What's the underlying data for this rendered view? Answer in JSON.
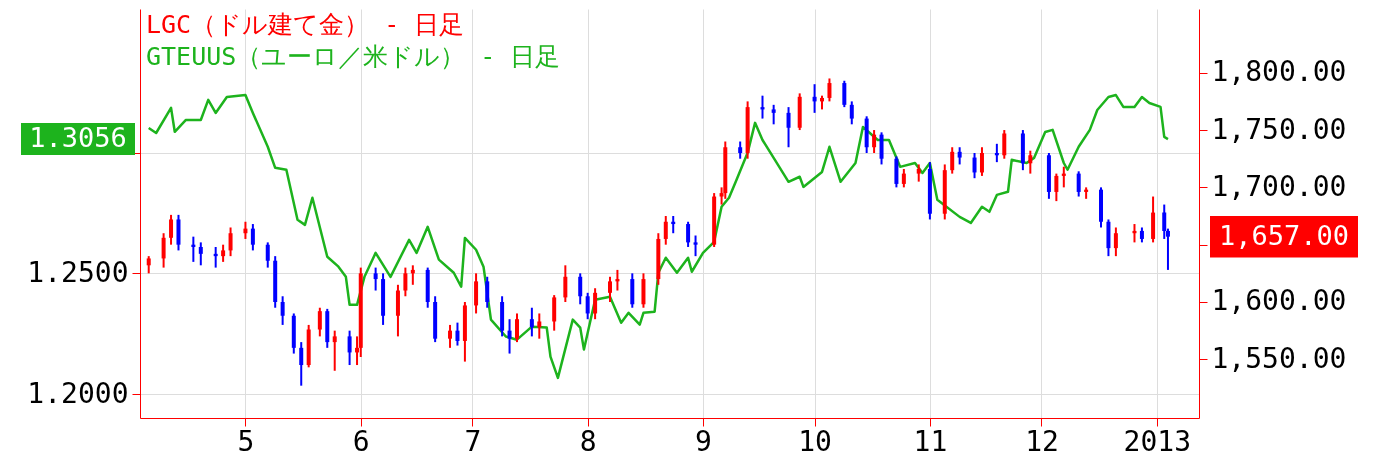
{
  "chart_data": {
    "type": "candlestick",
    "xlim": [
      "2012-04-04",
      "2013-01-11"
    ],
    "xticks": [
      {
        "value": "2012-05-01",
        "label": "5"
      },
      {
        "value": "2012-06-01",
        "label": "6"
      },
      {
        "value": "2012-07-01",
        "label": "7"
      },
      {
        "value": "2012-08-01",
        "label": "8"
      },
      {
        "value": "2012-09-01",
        "label": "9"
      },
      {
        "value": "2012-10-01",
        "label": "10"
      },
      {
        "value": "2012-11-01",
        "label": "11"
      },
      {
        "value": "2012-12-01",
        "label": "12"
      },
      {
        "value": "2013-01-01",
        "label": "2013"
      }
    ],
    "ylim": [
      1.1902,
      1.3594
    ],
    "yticks": [
      {
        "value": 1.2,
        "label": "1.2000"
      },
      {
        "value": 1.25,
        "label": "1.2500"
      },
      {
        "value": 1.3,
        "label": null
      }
    ],
    "y2lim": [
      1498.8,
      1855.6
    ],
    "y2ticks": [
      {
        "value": 1550,
        "label": "1,550.00"
      },
      {
        "value": 1600,
        "label": "1,600.00"
      },
      {
        "value": 1650,
        "label": null
      },
      {
        "value": 1700,
        "label": "1,700.00"
      },
      {
        "value": 1750,
        "label": "1,750.00"
      },
      {
        "value": 1800,
        "label": "1,800.00"
      }
    ],
    "grid": true,
    "legend": "top left",
    "annotations": [
      "1,657.00",
      "1.3056"
    ],
    "series": [
      {
        "name": "LGC（ドル建て金） - 日足",
        "color": "#ff0000",
        "axis": "y2",
        "x": [
          "2012-04-05",
          "2012-04-09",
          "2012-04-11",
          "2012-04-13",
          "2012-04-17",
          "2012-04-19",
          "2012-04-23",
          "2012-04-25",
          "2012-04-27",
          "2012-05-01",
          "2012-05-03",
          "2012-05-07",
          "2012-05-09",
          "2012-05-11",
          "2012-05-14",
          "2012-05-16",
          "2012-05-18",
          "2012-05-21",
          "2012-05-23",
          "2012-05-25",
          "2012-05-29",
          "2012-05-31",
          "2012-06-01",
          "2012-06-05",
          "2012-06-07",
          "2012-06-11",
          "2012-06-13",
          "2012-06-15",
          "2012-06-19",
          "2012-06-21",
          "2012-06-25",
          "2012-06-27",
          "2012-06-29",
          "2012-07-02",
          "2012-07-05",
          "2012-07-09",
          "2012-07-11",
          "2012-07-13",
          "2012-07-17",
          "2012-07-19",
          "2012-07-23",
          "2012-07-26",
          "2012-07-30",
          "2012-08-01",
          "2012-08-03",
          "2012-08-07",
          "2012-08-09",
          "2012-08-13",
          "2012-08-16",
          "2012-08-20",
          "2012-08-22",
          "2012-08-24",
          "2012-08-28",
          "2012-08-30",
          "2012-09-04",
          "2012-09-06",
          "2012-09-07",
          "2012-09-11",
          "2012-09-13",
          "2012-09-17",
          "2012-09-20",
          "2012-09-24",
          "2012-09-27",
          "2012-10-01",
          "2012-10-03",
          "2012-10-05",
          "2012-10-09",
          "2012-10-11",
          "2012-10-15",
          "2012-10-17",
          "2012-10-19",
          "2012-10-23",
          "2012-10-25",
          "2012-10-29",
          "2012-11-01",
          "2012-11-05",
          "2012-11-07",
          "2012-11-09",
          "2012-11-13",
          "2012-11-15",
          "2012-11-19",
          "2012-11-21",
          "2012-11-26",
          "2012-11-28",
          "2012-12-03",
          "2012-12-05",
          "2012-12-07",
          "2012-12-11",
          "2012-12-13",
          "2012-12-17",
          "2012-12-19",
          "2012-12-21",
          "2012-12-26",
          "2012-12-28",
          "2012-12-31",
          "2013-01-03",
          "2013-01-04"
        ],
        "ohlc": [
          [
            1632,
            1640,
            1625,
            1638
          ],
          [
            1638,
            1660,
            1630,
            1656
          ],
          [
            1656,
            1676,
            1650,
            1672
          ],
          [
            1672,
            1676,
            1645,
            1650
          ],
          [
            1650,
            1657,
            1635,
            1648
          ],
          [
            1648,
            1652,
            1632,
            1642
          ],
          [
            1642,
            1648,
            1630,
            1640
          ],
          [
            1640,
            1650,
            1635,
            1645
          ],
          [
            1645,
            1665,
            1640,
            1660
          ],
          [
            1660,
            1670,
            1655,
            1664
          ],
          [
            1664,
            1668,
            1645,
            1650
          ],
          [
            1650,
            1652,
            1630,
            1636
          ],
          [
            1636,
            1640,
            1595,
            1600
          ],
          [
            1600,
            1605,
            1580,
            1588
          ],
          [
            1588,
            1590,
            1555,
            1560
          ],
          [
            1560,
            1565,
            1527,
            1545
          ],
          [
            1545,
            1580,
            1543,
            1576
          ],
          [
            1576,
            1595,
            1570,
            1592
          ],
          [
            1592,
            1594,
            1560,
            1565
          ],
          [
            1565,
            1575,
            1540,
            1570
          ],
          [
            1570,
            1575,
            1545,
            1556
          ],
          [
            1556,
            1570,
            1545,
            1560
          ],
          [
            1560,
            1630,
            1552,
            1625
          ],
          [
            1625,
            1630,
            1610,
            1620
          ],
          [
            1620,
            1625,
            1580,
            1588
          ],
          [
            1588,
            1615,
            1570,
            1610
          ],
          [
            1610,
            1630,
            1605,
            1625
          ],
          [
            1625,
            1632,
            1615,
            1628
          ],
          [
            1628,
            1630,
            1595,
            1600
          ],
          [
            1600,
            1605,
            1565,
            1568
          ],
          [
            1568,
            1580,
            1560,
            1575
          ],
          [
            1575,
            1582,
            1562,
            1566
          ],
          [
            1566,
            1600,
            1548,
            1597
          ],
          [
            1597,
            1625,
            1590,
            1618
          ],
          [
            1618,
            1622,
            1595,
            1600
          ],
          [
            1600,
            1605,
            1570,
            1575
          ],
          [
            1575,
            1585,
            1555,
            1568
          ],
          [
            1568,
            1590,
            1565,
            1585
          ],
          [
            1585,
            1595,
            1570,
            1578
          ],
          [
            1578,
            1590,
            1568,
            1583
          ],
          [
            1583,
            1606,
            1575,
            1604
          ],
          [
            1604,
            1632,
            1600,
            1622
          ],
          [
            1622,
            1625,
            1598,
            1605
          ],
          [
            1605,
            1608,
            1585,
            1590
          ],
          [
            1590,
            1612,
            1585,
            1608
          ],
          [
            1608,
            1622,
            1600,
            1618
          ],
          [
            1618,
            1628,
            1610,
            1620
          ],
          [
            1620,
            1625,
            1595,
            1598
          ],
          [
            1598,
            1625,
            1595,
            1620
          ],
          [
            1620,
            1660,
            1615,
            1655
          ],
          [
            1655,
            1675,
            1650,
            1670
          ],
          [
            1670,
            1675,
            1660,
            1668
          ],
          [
            1668,
            1670,
            1648,
            1652
          ],
          [
            1652,
            1658,
            1640,
            1650
          ],
          [
            1650,
            1695,
            1648,
            1692
          ],
          [
            1692,
            1700,
            1685,
            1695
          ],
          [
            1695,
            1740,
            1690,
            1735
          ],
          [
            1735,
            1740,
            1725,
            1730
          ],
          [
            1730,
            1775,
            1725,
            1770
          ],
          [
            1770,
            1780,
            1760,
            1768
          ],
          [
            1768,
            1772,
            1755,
            1765
          ],
          [
            1765,
            1770,
            1735,
            1752
          ],
          [
            1752,
            1782,
            1750,
            1779
          ],
          [
            1779,
            1790,
            1765,
            1775
          ],
          [
            1775,
            1780,
            1768,
            1778
          ],
          [
            1778,
            1795,
            1775,
            1791
          ],
          [
            1791,
            1793,
            1770,
            1772
          ],
          [
            1772,
            1775,
            1755,
            1760
          ],
          [
            1760,
            1762,
            1730,
            1735
          ],
          [
            1735,
            1750,
            1730,
            1746
          ],
          [
            1746,
            1748,
            1720,
            1725
          ],
          [
            1725,
            1727,
            1700,
            1703
          ],
          [
            1703,
            1716,
            1700,
            1712
          ],
          [
            1712,
            1720,
            1705,
            1716
          ],
          [
            1716,
            1722,
            1672,
            1677
          ],
          [
            1677,
            1720,
            1672,
            1715
          ],
          [
            1715,
            1735,
            1712,
            1731
          ],
          [
            1731,
            1735,
            1720,
            1726
          ],
          [
            1726,
            1730,
            1708,
            1713
          ],
          [
            1713,
            1735,
            1710,
            1730
          ],
          [
            1730,
            1738,
            1722,
            1728
          ],
          [
            1728,
            1750,
            1725,
            1747
          ],
          [
            1747,
            1750,
            1715,
            1721
          ],
          [
            1721,
            1732,
            1712,
            1728
          ],
          [
            1728,
            1730,
            1690,
            1696
          ],
          [
            1696,
            1712,
            1688,
            1710
          ],
          [
            1710,
            1718,
            1700,
            1712
          ],
          [
            1712,
            1714,
            1692,
            1696
          ],
          [
            1696,
            1700,
            1690,
            1698
          ],
          [
            1698,
            1700,
            1665,
            1670
          ],
          [
            1670,
            1672,
            1640,
            1647
          ],
          [
            1647,
            1665,
            1640,
            1660
          ],
          [
            1660,
            1668,
            1652,
            1662
          ],
          [
            1662,
            1665,
            1652,
            1655
          ],
          [
            1655,
            1692,
            1652,
            1678
          ],
          [
            1678,
            1685,
            1655,
            1662
          ],
          [
            1662,
            1664,
            1628,
            1657
          ]
        ],
        "colors": [
          "#ff0000",
          "#ff0000",
          "#ff0000",
          "#0000ff",
          "#0000ff",
          "#0000ff",
          "#0000ff",
          "#ff0000",
          "#ff0000",
          "#ff0000",
          "#0000ff",
          "#0000ff",
          "#0000ff",
          "#0000ff",
          "#0000ff",
          "#0000ff",
          "#ff0000",
          "#ff0000",
          "#0000ff",
          "#ff0000",
          "#0000ff",
          "#ff0000",
          "#ff0000",
          "#0000ff",
          "#0000ff",
          "#ff0000",
          "#ff0000",
          "#ff0000",
          "#0000ff",
          "#0000ff",
          "#ff0000",
          "#0000ff",
          "#ff0000",
          "#ff0000",
          "#0000ff",
          "#0000ff",
          "#0000ff",
          "#ff0000",
          "#0000ff",
          "#ff0000",
          "#ff0000",
          "#ff0000",
          "#0000ff",
          "#0000ff",
          "#ff0000",
          "#ff0000",
          "#ff0000",
          "#0000ff",
          "#ff0000",
          "#ff0000",
          "#ff0000",
          "#0000ff",
          "#0000ff",
          "#0000ff",
          "#ff0000",
          "#ff0000",
          "#ff0000",
          "#0000ff",
          "#ff0000",
          "#0000ff",
          "#0000ff",
          "#0000ff",
          "#ff0000",
          "#0000ff",
          "#ff0000",
          "#ff0000",
          "#0000ff",
          "#0000ff",
          "#0000ff",
          "#ff0000",
          "#0000ff",
          "#0000ff",
          "#ff0000",
          "#ff0000",
          "#0000ff",
          "#ff0000",
          "#ff0000",
          "#0000ff",
          "#0000ff",
          "#ff0000",
          "#0000ff",
          "#ff0000",
          "#0000ff",
          "#ff0000",
          "#0000ff",
          "#ff0000",
          "#ff0000",
          "#0000ff",
          "#ff0000",
          "#0000ff",
          "#0000ff",
          "#ff0000",
          "#ff0000",
          "#0000ff",
          "#ff0000",
          "#0000ff",
          "#0000ff"
        ]
      },
      {
        "type": "line",
        "name": "GTEUUS（ユーロ／米ドル） - 日足",
        "color": "#1db31d",
        "axis": "y",
        "x": [
          "2012-04-05",
          "2012-04-07",
          "2012-04-11",
          "2012-04-12",
          "2012-04-15",
          "2012-04-19",
          "2012-04-21",
          "2012-04-23",
          "2012-04-26",
          "2012-05-01",
          "2012-05-03",
          "2012-05-07",
          "2012-05-09",
          "2012-05-12",
          "2012-05-15",
          "2012-05-17",
          "2012-05-19",
          "2012-05-23",
          "2012-05-26",
          "2012-05-28",
          "2012-05-29",
          "2012-05-31",
          "2012-06-02",
          "2012-06-05",
          "2012-06-09",
          "2012-06-14",
          "2012-06-16",
          "2012-06-19",
          "2012-06-22",
          "2012-06-26",
          "2012-06-28",
          "2012-06-29",
          "2012-07-02",
          "2012-07-04",
          "2012-07-06",
          "2012-07-10",
          "2012-07-13",
          "2012-07-17",
          "2012-07-21",
          "2012-07-22",
          "2012-07-24",
          "2012-07-28",
          "2012-07-30",
          "2012-07-31",
          "2012-08-03",
          "2012-08-07",
          "2012-08-10",
          "2012-08-12",
          "2012-08-15",
          "2012-08-16",
          "2012-08-19",
          "2012-08-20",
          "2012-08-22",
          "2012-08-25",
          "2012-08-28",
          "2012-08-29",
          "2012-09-01",
          "2012-09-04",
          "2012-09-06",
          "2012-09-08",
          "2012-09-10",
          "2012-09-13",
          "2012-09-15",
          "2012-09-17",
          "2012-09-20",
          "2012-09-24",
          "2012-09-27",
          "2012-09-28",
          "2012-10-03",
          "2012-10-05",
          "2012-10-08",
          "2012-10-12",
          "2012-10-14",
          "2012-10-18",
          "2012-10-21",
          "2012-10-24",
          "2012-10-28",
          "2012-10-30",
          "2012-11-01",
          "2012-11-03",
          "2012-11-09",
          "2012-11-12",
          "2012-11-15",
          "2012-11-17",
          "2012-11-19",
          "2012-11-22",
          "2012-11-23",
          "2012-11-27",
          "2012-11-29",
          "2012-12-02",
          "2012-12-04",
          "2012-12-07",
          "2012-12-08",
          "2012-12-11",
          "2012-12-14",
          "2012-12-16",
          "2012-12-19",
          "2012-12-21",
          "2012-12-23",
          "2012-12-26",
          "2012-12-28",
          "2012-12-30",
          "2013-01-02",
          "2013-01-03",
          "2013-01-04"
        ],
        "values": [
          1.3102,
          1.3081,
          1.3185,
          1.3086,
          1.3135,
          1.3135,
          1.3218,
          1.3164,
          1.323,
          1.3238,
          1.3164,
          1.3024,
          1.2937,
          1.2929,
          1.2722,
          1.2701,
          1.2813,
          1.2569,
          1.2528,
          1.2486,
          1.237,
          1.237,
          1.2486,
          1.2585,
          1.2486,
          1.2639,
          1.2585,
          1.2693,
          1.2557,
          1.2503,
          1.2445,
          1.2647,
          1.2598,
          1.2528,
          1.2309,
          1.2239,
          1.2226,
          1.228,
          1.2276,
          1.2156,
          1.2068,
          1.2309,
          1.2276,
          1.2185,
          1.2391,
          1.2404,
          1.2296,
          1.2337,
          1.2288,
          1.2337,
          1.2342,
          1.2503,
          1.2565,
          1.2503,
          1.2565,
          1.2507,
          1.2585,
          1.2631,
          1.2776,
          1.2813,
          1.2887,
          1.2999,
          1.3123,
          1.3052,
          1.2978,
          1.2879,
          1.29,
          1.2858,
          1.292,
          1.3024,
          1.2879,
          1.2957,
          1.3106,
          1.3052,
          1.3052,
          1.2941,
          1.2957,
          1.2916,
          1.2957,
          1.2805,
          1.2734,
          1.2709,
          1.2776,
          1.2755,
          1.2825,
          1.2838,
          1.297,
          1.2957,
          1.2978,
          1.3085,
          1.3094,
          1.2957,
          1.2929,
          1.3024,
          1.3094,
          1.3176,
          1.323,
          1.3238,
          1.3189,
          1.3189,
          1.323,
          1.3205,
          1.3189,
          1.3065,
          1.3056
        ]
      }
    ]
  }
}
